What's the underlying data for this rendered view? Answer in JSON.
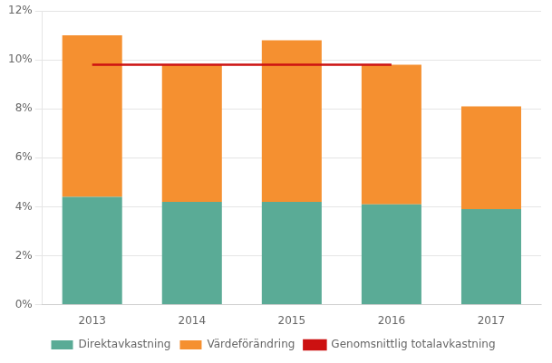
{
  "chart_data": {
    "type": "bar",
    "stacked": true,
    "categories": [
      "2013",
      "2014",
      "2015",
      "2016",
      "2017"
    ],
    "series": [
      {
        "name": "Direktavkastning",
        "color": "#5aab96",
        "values": [
          4.4,
          4.2,
          4.2,
          4.1,
          3.9
        ]
      },
      {
        "name": "Värdeförändring",
        "color": "#f59030",
        "values": [
          6.6,
          5.6,
          6.6,
          5.7,
          4.2
        ]
      },
      {
        "name": "Genomsnittlig totalavkastning",
        "type": "line",
        "color": "#cc1111",
        "values": [
          9.8,
          9.8,
          9.8,
          9.8,
          null
        ]
      }
    ],
    "ylim": [
      0,
      12
    ],
    "yticks": [
      {
        "value": 0,
        "label": "0%"
      },
      {
        "value": 2,
        "label": "2%"
      },
      {
        "value": 4,
        "label": "4%"
      },
      {
        "value": 6,
        "label": "6%"
      },
      {
        "value": 8,
        "label": "8%"
      },
      {
        "value": 10,
        "label": "10%"
      },
      {
        "value": 12,
        "label": "12%"
      }
    ],
    "grid": "y",
    "legend": "bottom"
  }
}
